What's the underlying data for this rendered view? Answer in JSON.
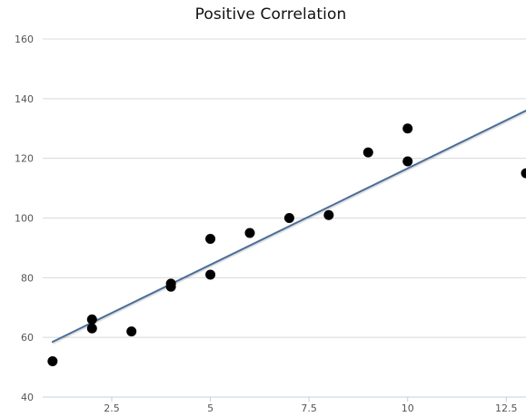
{
  "chart_data": {
    "type": "scatter",
    "title": "Positive Correlation",
    "xlabel": "",
    "ylabel": "",
    "xlim": [
      0.75,
      13
    ],
    "ylim": [
      40,
      160
    ],
    "xticks": [
      2.5,
      5,
      7.5,
      10,
      12.5
    ],
    "xtick_labels": [
      "2.5",
      "5",
      "7.5",
      "10",
      "12.5"
    ],
    "yticks": [
      40,
      60,
      80,
      100,
      120,
      140,
      160
    ],
    "ytick_labels": [
      "40",
      "60",
      "80",
      "100",
      "120",
      "140",
      "160"
    ],
    "grid": true,
    "legend": "none",
    "points": [
      {
        "x": 1,
        "y": 52
      },
      {
        "x": 2,
        "y": 63
      },
      {
        "x": 2,
        "y": 66
      },
      {
        "x": 3,
        "y": 62
      },
      {
        "x": 4,
        "y": 77
      },
      {
        "x": 4,
        "y": 78
      },
      {
        "x": 5,
        "y": 81
      },
      {
        "x": 5,
        "y": 93
      },
      {
        "x": 6,
        "y": 95
      },
      {
        "x": 7,
        "y": 100
      },
      {
        "x": 8,
        "y": 101
      },
      {
        "x": 9,
        "y": 122
      },
      {
        "x": 10,
        "y": 119
      },
      {
        "x": 10,
        "y": 130
      },
      {
        "x": 13,
        "y": 115
      }
    ],
    "trend_line": {
      "x": [
        1,
        13
      ],
      "y": [
        58.5,
        136
      ]
    },
    "colors": {
      "points": "#000000",
      "trend_line": "#4a6d99",
      "grid": "#d9d9d9"
    }
  }
}
